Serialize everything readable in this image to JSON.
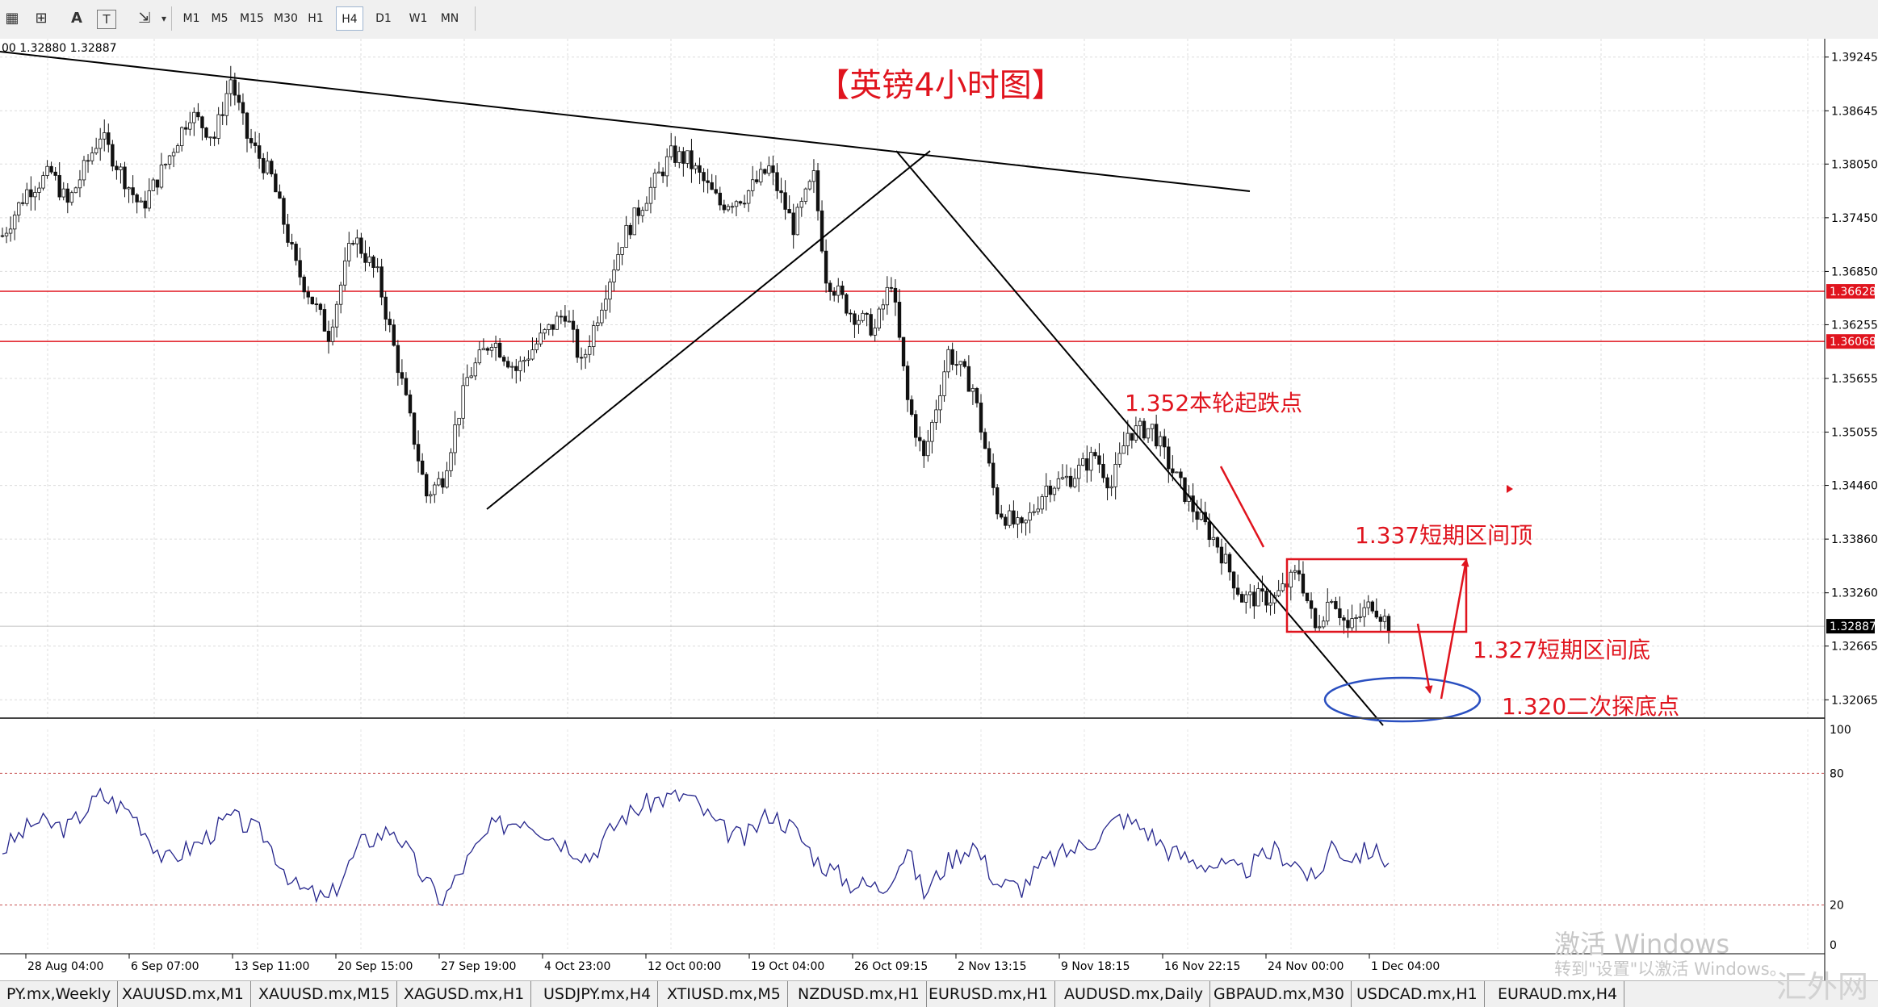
{
  "toolbar": {
    "icons": [
      "chart-type-icon",
      "indicator-icon",
      "text-icon",
      "label-icon",
      "arrow-icon"
    ],
    "text_tool": "A",
    "label_tool": "T",
    "timeframes": [
      "M1",
      "M5",
      "M15",
      "M30",
      "H1",
      "H4",
      "D1",
      "W1",
      "MN"
    ],
    "active_timeframe": "H4"
  },
  "chart_header": "00 1.32880 1.32887",
  "chart_data": {
    "type": "candlestick",
    "title": "【英镑4小时图】",
    "y_ticks": [
      "1.39245",
      "1.38645",
      "1.38050",
      "1.37450",
      "1.36850",
      "1.36255",
      "1.35655",
      "1.35055",
      "1.34460",
      "1.33860",
      "1.33260",
      "1.32665",
      "1.32065"
    ],
    "y_tick_values": [
      1.39245,
      1.38645,
      1.3805,
      1.3745,
      1.3685,
      1.36255,
      1.35655,
      1.35055,
      1.3446,
      1.3386,
      1.3326,
      1.32665,
      1.32065
    ],
    "ylim": [
      1.3186,
      1.3945
    ],
    "x_ticks": [
      "28 Aug 04:00",
      "6 Sep 07:00",
      "13 Sep 11:00",
      "20 Sep 15:00",
      "27 Sep 19:00",
      "4 Oct 23:00",
      "12 Oct 00:00",
      "19 Oct 04:00",
      "26 Oct 09:15",
      "2 Nov 13:15",
      "9 Nov 18:15",
      "16 Nov 22:15",
      "24 Nov 00:00",
      "1 Dec 04:00"
    ],
    "bar_count": 245,
    "close_path": [
      [
        0,
        1.3725
      ],
      [
        6,
        1.3775
      ],
      [
        12,
        1.3795
      ],
      [
        16,
        1.376
      ],
      [
        24,
        1.3838
      ],
      [
        34,
        1.3755
      ],
      [
        40,
        1.3805
      ],
      [
        46,
        1.3862
      ],
      [
        52,
        1.3835
      ],
      [
        56,
        1.39
      ],
      [
        60,
        1.3835
      ],
      [
        66,
        1.379
      ],
      [
        72,
        1.369
      ],
      [
        80,
        1.3615
      ],
      [
        86,
        1.3725
      ],
      [
        92,
        1.368
      ],
      [
        98,
        1.356
      ],
      [
        104,
        1.3435
      ],
      [
        108,
        1.3455
      ],
      [
        114,
        1.3565
      ],
      [
        120,
        1.361
      ],
      [
        126,
        1.3575
      ],
      [
        132,
        1.361
      ],
      [
        138,
        1.364
      ],
      [
        142,
        1.358
      ],
      [
        148,
        1.3665
      ],
      [
        152,
        1.372
      ],
      [
        158,
        1.377
      ],
      [
        164,
        1.3815
      ],
      [
        168,
        1.381
      ],
      [
        176,
        1.376
      ],
      [
        182,
        1.377
      ],
      [
        188,
        1.38
      ],
      [
        194,
        1.3735
      ],
      [
        199,
        1.379
      ],
      [
        202,
        1.368
      ],
      [
        208,
        1.364
      ],
      [
        214,
        1.362
      ],
      [
        218,
        1.3675
      ],
      [
        222,
        1.354
      ],
      [
        226,
        1.3475
      ],
      [
        232,
        1.3595
      ],
      [
        238,
        1.3555
      ],
      [
        244,
        1.342
      ],
      [
        250,
        1.3395
      ],
      [
        256,
        1.3445
      ],
      [
        262,
        1.3455
      ],
      [
        268,
        1.348
      ],
      [
        272,
        1.3445
      ],
      [
        276,
        1.3505
      ],
      [
        282,
        1.351
      ],
      [
        286,
        1.347
      ],
      [
        292,
        1.342
      ],
      [
        298,
        1.338
      ],
      [
        304,
        1.332
      ],
      [
        312,
        1.332
      ],
      [
        318,
        1.335
      ],
      [
        322,
        1.3285
      ],
      [
        326,
        1.3325
      ],
      [
        330,
        1.3285
      ],
      [
        336,
        1.3315
      ],
      [
        340,
        1.329
      ]
    ],
    "horizontal_levels": [
      1.36628,
      1.36068
    ],
    "current_price": "1.32887",
    "current_price_value": 1.32887,
    "level_labels": [
      "1.36628",
      "1.36068"
    ],
    "annotations": [
      "1.352本轮起跌点",
      "1.337短期区间顶",
      "1.327短期区间底",
      "1.320二次探底点"
    ],
    "indicator": {
      "levels": [
        "100",
        "80",
        "20",
        "0"
      ],
      "level_values": [
        100,
        80,
        20,
        0
      ],
      "guide_levels": [
        80,
        20
      ],
      "ylim": [
        0,
        100
      ],
      "path": [
        [
          0,
          45
        ],
        [
          8,
          58
        ],
        [
          16,
          55
        ],
        [
          24,
          70
        ],
        [
          32,
          62
        ],
        [
          40,
          40
        ],
        [
          48,
          48
        ],
        [
          56,
          60
        ],
        [
          64,
          52
        ],
        [
          72,
          28
        ],
        [
          80,
          22
        ],
        [
          88,
          48
        ],
        [
          96,
          55
        ],
        [
          104,
          30
        ],
        [
          108,
          22
        ],
        [
          114,
          40
        ],
        [
          120,
          55
        ],
        [
          128,
          60
        ],
        [
          136,
          50
        ],
        [
          144,
          42
        ],
        [
          152,
          60
        ],
        [
          160,
          68
        ],
        [
          168,
          70
        ],
        [
          176,
          55
        ],
        [
          182,
          50
        ],
        [
          188,
          62
        ],
        [
          194,
          55
        ],
        [
          200,
          40
        ],
        [
          208,
          30
        ],
        [
          216,
          28
        ],
        [
          222,
          45
        ],
        [
          226,
          25
        ],
        [
          232,
          40
        ],
        [
          238,
          48
        ],
        [
          244,
          30
        ],
        [
          250,
          28
        ],
        [
          256,
          40
        ],
        [
          262,
          45
        ],
        [
          268,
          50
        ],
        [
          274,
          60
        ],
        [
          280,
          55
        ],
        [
          286,
          45
        ],
        [
          292,
          40
        ],
        [
          298,
          38
        ],
        [
          304,
          35
        ],
        [
          312,
          45
        ],
        [
          318,
          38
        ],
        [
          322,
          30
        ],
        [
          326,
          48
        ],
        [
          330,
          42
        ],
        [
          336,
          45
        ],
        [
          340,
          40
        ]
      ]
    }
  },
  "tabs": [
    "PY.mx,Weekly",
    "XAUUSD.mx,M1",
    "XAUUSD.mx,M15",
    "XAGUSD.mx,H1",
    "USDJPY.mx,H4",
    "XTIUSD.mx,M5",
    "NZDUSD.mx,H1",
    "EURUSD.mx,H1",
    "AUDUSD.mx,Daily",
    "GBPAUD.mx,M30",
    "USDCAD.mx,H1",
    "EURAUD.mx,H4"
  ],
  "watermark": {
    "line1": "激活 Windows",
    "line2": "转到\"设置\"以激活 Windows。",
    "site": "汇外网"
  },
  "colors": {
    "candle": "#111111",
    "level_line": "#e0141e",
    "annotation": "#e0141e",
    "ellipse": "#2a4fc0",
    "indicator_line": "#26268c"
  }
}
